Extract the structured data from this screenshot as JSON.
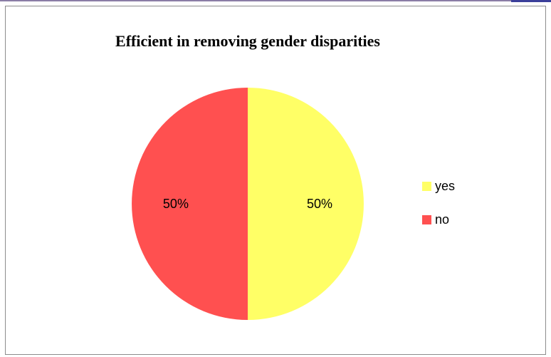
{
  "chart_data": {
    "type": "pie",
    "title": "Efficient in removing gender disparities",
    "categories": [
      "yes",
      "no"
    ],
    "values": [
      50,
      50
    ],
    "value_labels": [
      "50%",
      "50%"
    ],
    "colors": [
      "#ffff66",
      "#ff5050"
    ],
    "legend_position": "right"
  }
}
